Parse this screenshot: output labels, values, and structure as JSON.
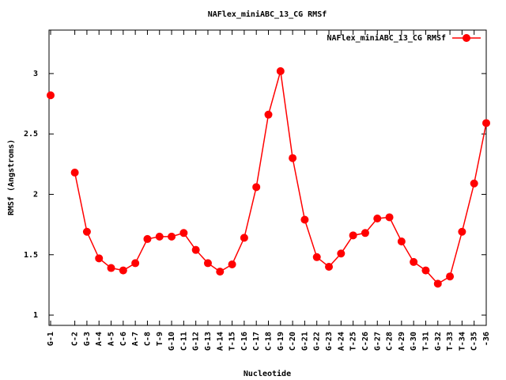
{
  "chart_data": {
    "type": "line",
    "title": "NAFlex_miniABC_13_CG RMSf",
    "x_label": "Nucleotide",
    "y_label": "RMSf (Angstroms)",
    "categories": [
      "G-1",
      null,
      "C-2",
      "G-3",
      "A-4",
      "A-5",
      "C-6",
      "A-7",
      "C-8",
      "T-9",
      "G-10",
      "C-11",
      "G-12",
      "G-13",
      "A-14",
      "T-15",
      "C-16",
      "C-17",
      "C-18",
      "G-19",
      "C-20",
      "G-21",
      "G-22",
      "G-23",
      "A-24",
      "T-25",
      "C-26",
      "G-27",
      "C-28",
      "A-29",
      "G-30",
      "T-31",
      "G-32",
      "T-33",
      "T-34",
      "C-35",
      "-36"
    ],
    "series": [
      {
        "name": "NAFlex_miniABC_13_CG RMSf",
        "color": "#ff0000",
        "values": [
          2.82,
          null,
          2.18,
          1.69,
          1.47,
          1.39,
          1.37,
          1.43,
          1.63,
          1.65,
          1.65,
          1.68,
          1.54,
          1.43,
          1.36,
          1.42,
          1.64,
          2.06,
          2.66,
          3.02,
          2.3,
          1.79,
          1.48,
          1.4,
          1.51,
          1.66,
          1.68,
          1.8,
          1.81,
          1.61,
          1.44,
          1.37,
          1.26,
          1.32,
          1.69,
          2.09,
          2.59
        ]
      }
    ],
    "ylim": [
      0.915,
      3.36
    ],
    "yticks": [
      1,
      1.5,
      2,
      2.5,
      3
    ],
    "legend": "upper right"
  }
}
